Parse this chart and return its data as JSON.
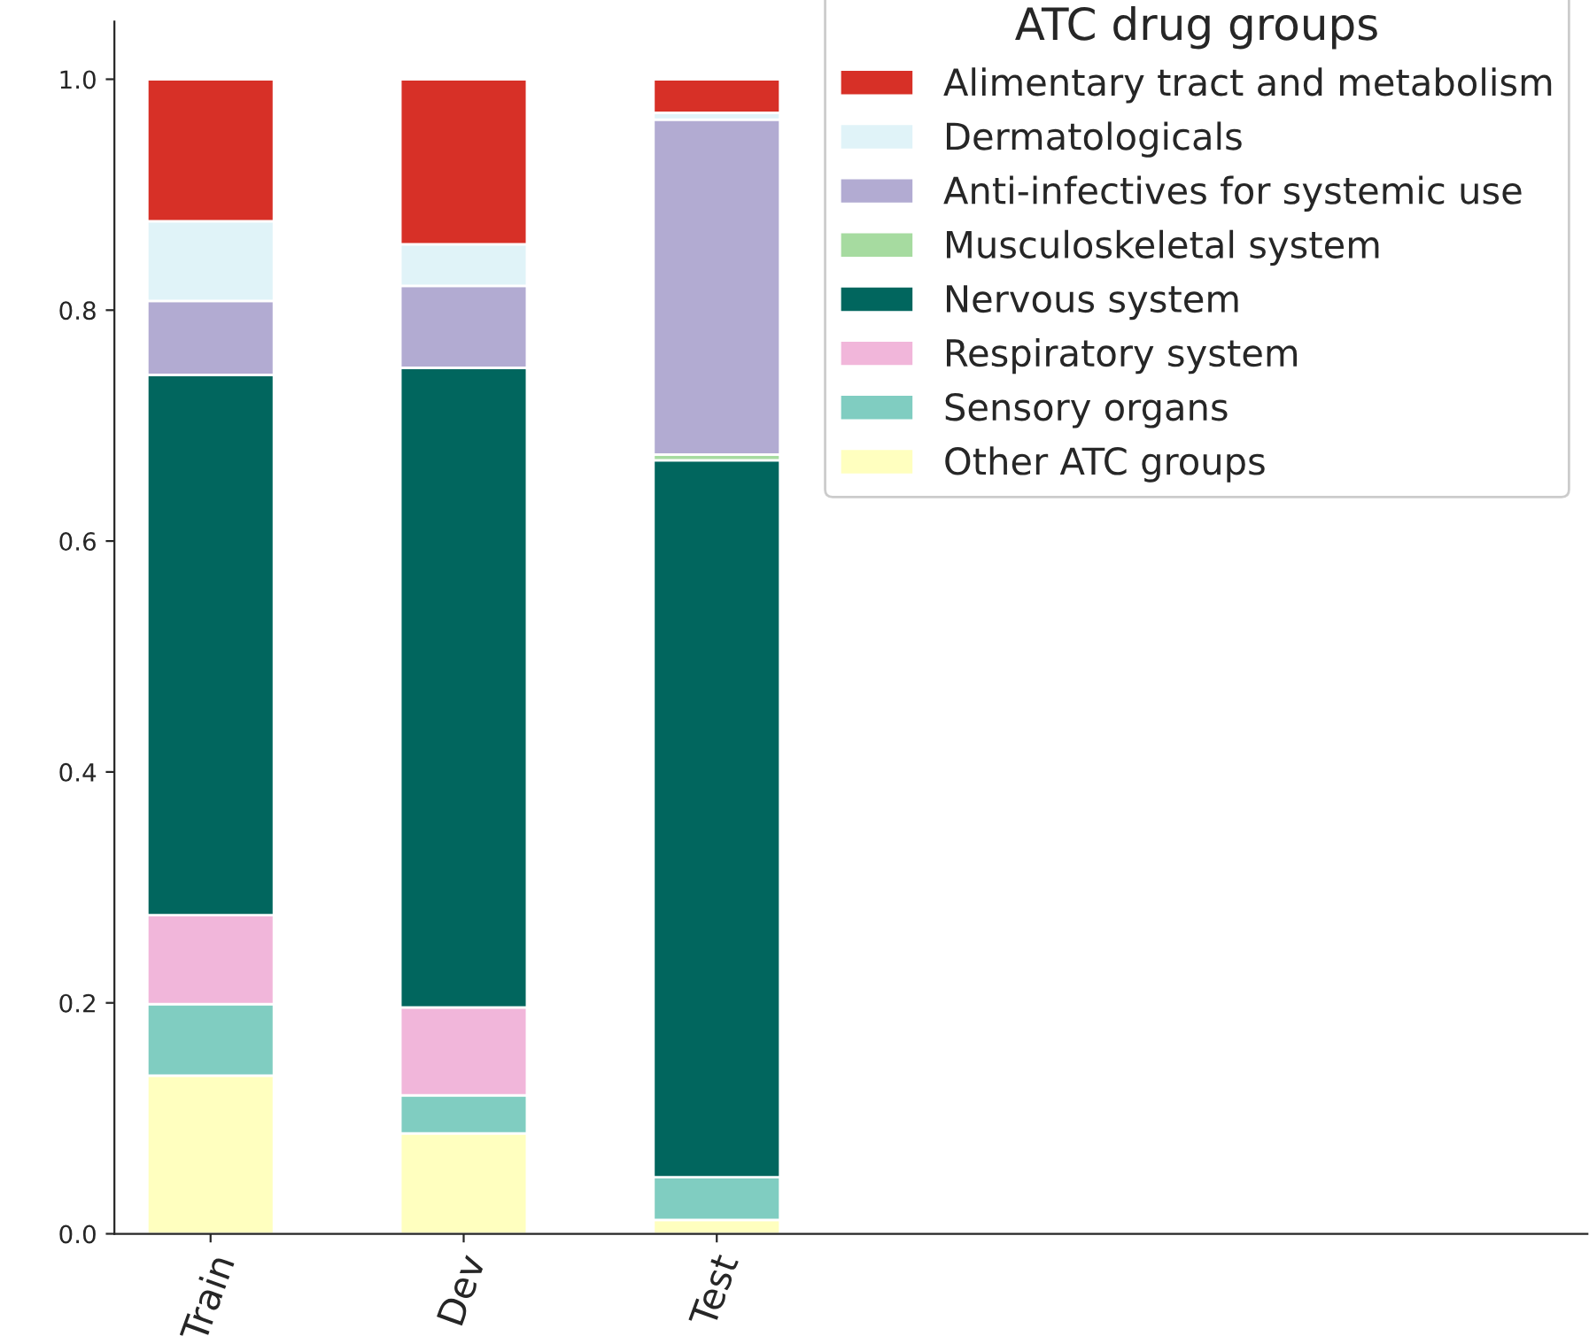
{
  "chart_data": {
    "type": "bar",
    "stacked": true,
    "categories": [
      "Train",
      "Dev",
      "Test"
    ],
    "series": [
      {
        "name": "Other ATC groups",
        "color": "#ffffbf",
        "values": [
          0.137,
          0.087,
          0.012
        ]
      },
      {
        "name": "Sensory organs",
        "color": "#80cdc1",
        "values": [
          0.062,
          0.033,
          0.037
        ]
      },
      {
        "name": "Respiratory system",
        "color": "#f1b6da",
        "values": [
          0.077,
          0.076,
          0
        ]
      },
      {
        "name": "Nervous system",
        "color": "#01665e",
        "values": [
          0.468,
          0.554,
          0.621
        ]
      },
      {
        "name": "Musculoskeletal system",
        "color": "#a6dba0",
        "values": [
          0,
          0,
          0.005
        ]
      },
      {
        "name": "Anti-infectives for systemic use",
        "color": "#b2abd2",
        "values": [
          0.064,
          0.071,
          0.29
        ]
      },
      {
        "name": "Dermatologicals",
        "color": "#e0f3f8",
        "values": [
          0.069,
          0.036,
          0.006
        ]
      },
      {
        "name": "Alimentary tract and metabolism",
        "color": "#d73027",
        "values": [
          0.123,
          0.143,
          0.029
        ]
      }
    ],
    "legend_title": "ATC drug groups",
    "legend": "top right",
    "grid": false,
    "ylim": [
      0,
      1.05
    ],
    "yticks": [
      {
        "value": 0,
        "label": "0.0"
      },
      {
        "value": 0.2,
        "label": "0.2"
      },
      {
        "value": 0.4,
        "label": "0.4"
      },
      {
        "value": 0.6,
        "label": "0.6"
      },
      {
        "value": 0.8,
        "label": "0.8"
      },
      {
        "value": 1.0,
        "label": "1.0"
      }
    ]
  }
}
